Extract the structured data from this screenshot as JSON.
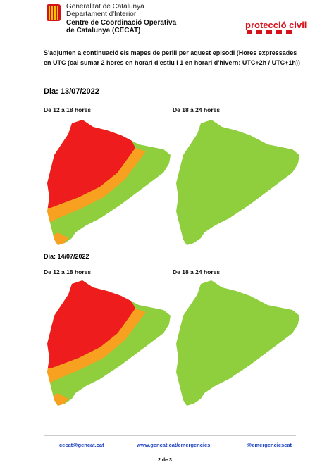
{
  "header": {
    "org_lines": [
      "Generalitat de Catalunya",
      "Departament d'Interior"
    ],
    "center_lines": [
      "Centre de Coordinació Operativa",
      "de Catalunya (CECAT)"
    ],
    "brand": "protecció civil"
  },
  "intro": "S'adjunten a continuació els mapes de perill per aquest episodi (Hores expressades en UTC (cal sumar 2 hores en horari d'estiu i 1 en horari d'hivern: UTC+2h / UTC+1h))",
  "days": [
    {
      "title": "Dia: 13/07/2022",
      "periods": [
        "De 12 a 18 hores",
        "De 18 a 24 hores"
      ]
    },
    {
      "title": "Dia: 14/07/2022",
      "periods": [
        "De 12 a 18 hores",
        "De 18 a 24 hores"
      ]
    }
  ],
  "footer": {
    "links": [
      "cecat@gencat.cat",
      "www.gencat.cat/emergencies",
      "@emergenciescat"
    ],
    "page": "2 de 3"
  }
}
